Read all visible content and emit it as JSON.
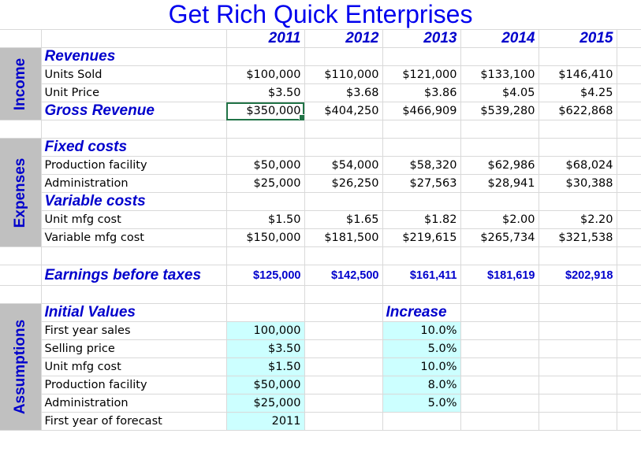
{
  "title": "Get Rich Quick Enterprises",
  "years": [
    "2011",
    "2012",
    "2013",
    "2014",
    "2015"
  ],
  "side_labels": {
    "income": "Income",
    "expenses": "Expenses",
    "assumptions": "Assumptions"
  },
  "income": {
    "revenues_label": "Revenues",
    "units_sold": {
      "label": "Units Sold",
      "values": [
        "$100,000",
        "$110,000",
        "$121,000",
        "$133,100",
        "$146,410"
      ]
    },
    "unit_price": {
      "label": "Unit Price",
      "values": [
        "$3.50",
        "$3.68",
        "$3.86",
        "$4.05",
        "$4.25"
      ]
    },
    "gross_revenue": {
      "label": "Gross Revenue",
      "values": [
        "$350,000",
        "$404,250",
        "$466,909",
        "$539,280",
        "$622,868"
      ]
    }
  },
  "expenses": {
    "fixed_label": "Fixed costs",
    "production_facility": {
      "label": "Production facility",
      "values": [
        "$50,000",
        "$54,000",
        "$58,320",
        "$62,986",
        "$68,024"
      ]
    },
    "administration": {
      "label": "Administration",
      "values": [
        "$25,000",
        "$26,250",
        "$27,563",
        "$28,941",
        "$30,388"
      ]
    },
    "variable_label": "Variable costs",
    "unit_mfg_cost": {
      "label": "Unit mfg cost",
      "values": [
        "$1.50",
        "$1.65",
        "$1.82",
        "$2.00",
        "$2.20"
      ]
    },
    "variable_mfg_cost": {
      "label": "Variable mfg cost",
      "values": [
        "$150,000",
        "$181,500",
        "$219,615",
        "$265,734",
        "$321,538"
      ]
    }
  },
  "ebt": {
    "label": "Earnings before taxes",
    "values": [
      "$125,000",
      "$142,500",
      "$161,411",
      "$181,619",
      "$202,918"
    ]
  },
  "assumptions": {
    "initial_label": "Initial Values",
    "increase_label": "Increase",
    "rows": [
      {
        "label": "First year sales",
        "value": "100,000",
        "increase": "10.0%"
      },
      {
        "label": "Selling price",
        "value": "$3.50",
        "increase": "5.0%"
      },
      {
        "label": "Unit mfg cost",
        "value": "$1.50",
        "increase": "10.0%"
      },
      {
        "label": "Production facility",
        "value": "$50,000",
        "increase": "8.0%"
      },
      {
        "label": "Administration",
        "value": "$25,000",
        "increase": "5.0%"
      },
      {
        "label": "First year of forecast",
        "value": "2011",
        "increase": ""
      }
    ]
  },
  "colors": {
    "accent_blue": "#0000cc",
    "input_cyan": "#ccffff",
    "side_gray": "#c0c0c0",
    "selection_green": "#217346"
  }
}
